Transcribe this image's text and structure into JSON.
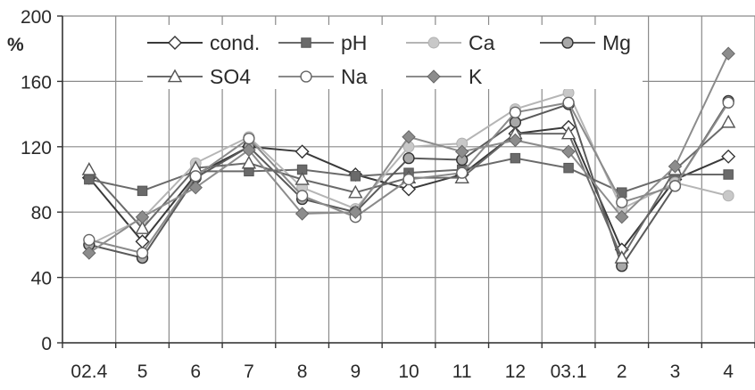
{
  "chart_data": {
    "type": "line",
    "ylabel": "%",
    "ylim": [
      0,
      200
    ],
    "yticks": [
      "0",
      "40",
      "80",
      "120",
      "160",
      "200"
    ],
    "categories": [
      "02.4",
      "5",
      "6",
      "7",
      "8",
      "9",
      "10",
      "11",
      "12",
      "03.1",
      "2",
      "3",
      "4"
    ],
    "grid": true,
    "legend_position": "top",
    "series": [
      {
        "name": "cond.",
        "marker": "diamond-open",
        "color": "#3a3a3a",
        "values": [
          101,
          62,
          103,
          120,
          117,
          103,
          94,
          103,
          128,
          132,
          57,
          100,
          114
        ]
      },
      {
        "name": "pH",
        "marker": "square-filled",
        "color": "#6a6a6a",
        "values": [
          100,
          93,
          105,
          105,
          106,
          102,
          104,
          106,
          113,
          107,
          92,
          103,
          103
        ]
      },
      {
        "name": "Ca",
        "marker": "circle-filled-light",
        "color": "#b5b5b5",
        "values": [
          60,
          76,
          110,
          126,
          95,
          82,
          120,
          122,
          143,
          153,
          82,
          98,
          90
        ]
      },
      {
        "name": "Mg",
        "marker": "circle-gray",
        "color": "#5a5a5a",
        "values": [
          60,
          52,
          101,
          120,
          88,
          80,
          113,
          112,
          135,
          146,
          47,
          96,
          148
        ]
      },
      {
        "name": "SO4",
        "marker": "triangle-open",
        "color": "#6a6a6a",
        "values": [
          106,
          70,
          107,
          110,
          100,
          92,
          101,
          101,
          128,
          128,
          52,
          106,
          135
        ]
      },
      {
        "name": "Na",
        "marker": "circle-open",
        "color": "#8a8a8a",
        "values": [
          63,
          55,
          102,
          125,
          90,
          77,
          100,
          104,
          141,
          147,
          86,
          96,
          147
        ]
      },
      {
        "name": "K",
        "marker": "diamond-filled",
        "color": "#8c8c8c",
        "values": [
          55,
          77,
          95,
          118,
          79,
          80,
          126,
          117,
          124,
          117,
          77,
          108,
          177
        ]
      }
    ]
  }
}
